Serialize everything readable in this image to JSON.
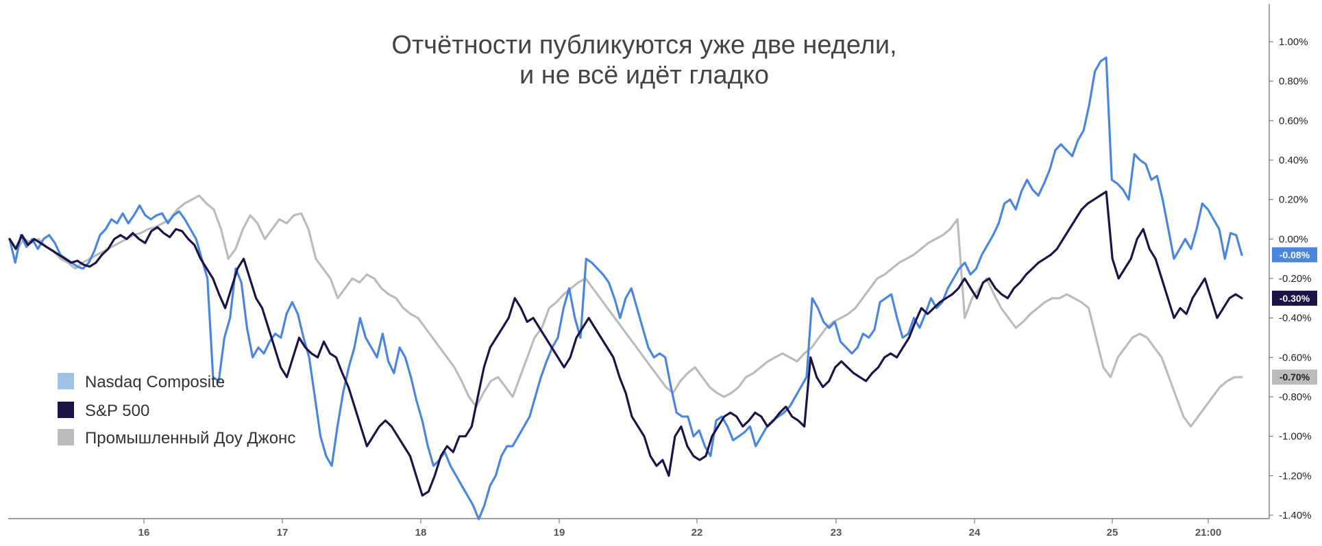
{
  "chart_data": {
    "type": "line",
    "title": [
      "Отчётности публикуются уже две недели,",
      "и не всё идёт гладко"
    ],
    "x_tick_labels": [
      "16",
      "17",
      "18",
      "19",
      "22",
      "23",
      "24",
      "25",
      "21:00"
    ],
    "y_axis": {
      "ylim": [
        -1.42,
        1.2
      ],
      "ticks": [
        1.0,
        0.8,
        0.6,
        0.4,
        0.2,
        0.0,
        -0.2,
        -0.4,
        -0.6,
        -0.8,
        -1.0,
        -1.2,
        -1.4
      ],
      "tick_labels": [
        "1.00%",
        "0.80%",
        "0.60%",
        "0.40%",
        "0.20%",
        "0.00%",
        "-0.20%",
        "-0.40%",
        "-0.60%",
        "-0.80%",
        "-1.00%",
        "-1.20%",
        "-1.40%"
      ],
      "position": "right"
    },
    "legend": {
      "placement": "bottom-left",
      "entries": [
        {
          "label": "Nasdaq Composite",
          "color": "#9dc3e9"
        },
        {
          "label": "S&P 500",
          "color": "#1c1347"
        },
        {
          "label": "Промышленный Доу Джонс",
          "color": "#bbbbbb"
        }
      ]
    },
    "series": [
      {
        "color": "#4a86de",
        "end_label": "-0.08%",
        "values": [
          0.0,
          -0.12,
          0.02,
          -0.04,
          0.0,
          -0.05,
          0.0,
          0.02,
          -0.02,
          -0.08,
          -0.1,
          -0.12,
          -0.14,
          -0.15,
          -0.12,
          -0.06,
          0.02,
          0.05,
          0.1,
          0.08,
          0.13,
          0.08,
          0.12,
          0.17,
          0.12,
          0.1,
          0.12,
          0.13,
          0.08,
          0.12,
          0.14,
          0.1,
          0.05,
          0.0,
          -0.1,
          -0.2,
          -0.7,
          -0.72,
          -0.5,
          -0.4,
          -0.15,
          -0.22,
          -0.45,
          -0.6,
          -0.55,
          -0.58,
          -0.52,
          -0.48,
          -0.5,
          -0.38,
          -0.32,
          -0.38,
          -0.5,
          -0.6,
          -0.8,
          -1.0,
          -1.1,
          -1.15,
          -0.95,
          -0.78,
          -0.65,
          -0.55,
          -0.4,
          -0.5,
          -0.55,
          -0.6,
          -0.48,
          -0.62,
          -0.68,
          -0.55,
          -0.6,
          -0.7,
          -0.82,
          -0.92,
          -1.05,
          -1.15,
          -1.12,
          -1.08,
          -1.15,
          -1.2,
          -1.25,
          -1.3,
          -1.35,
          -1.42,
          -1.35,
          -1.25,
          -1.2,
          -1.1,
          -1.05,
          -1.05,
          -1.0,
          -0.95,
          -0.9,
          -0.8,
          -0.7,
          -0.62,
          -0.55,
          -0.5,
          -0.35,
          -0.25,
          -0.4,
          -0.5,
          -0.1,
          -0.12,
          -0.15,
          -0.18,
          -0.22,
          -0.3,
          -0.4,
          -0.3,
          -0.25,
          -0.35,
          -0.45,
          -0.55,
          -0.6,
          -0.58,
          -0.6,
          -0.75,
          -0.88,
          -0.9,
          -0.9,
          -1.0,
          -0.97,
          -1.05,
          -1.1,
          -0.92,
          -0.9,
          -0.95,
          -1.02,
          -1.0,
          -0.98,
          -0.95,
          -1.05,
          -1.0,
          -0.95,
          -0.92,
          -0.9,
          -0.88,
          -0.85,
          -0.8,
          -0.75,
          -0.7,
          -0.3,
          -0.35,
          -0.42,
          -0.45,
          -0.42,
          -0.52,
          -0.55,
          -0.58,
          -0.55,
          -0.48,
          -0.5,
          -0.46,
          -0.32,
          -0.3,
          -0.28,
          -0.4,
          -0.5,
          -0.48,
          -0.4,
          -0.45,
          -0.38,
          -0.3,
          -0.35,
          -0.32,
          -0.25,
          -0.2,
          -0.15,
          -0.12,
          -0.18,
          -0.15,
          -0.08,
          -0.03,
          0.02,
          0.08,
          0.18,
          0.2,
          0.15,
          0.24,
          0.3,
          0.25,
          0.22,
          0.28,
          0.35,
          0.45,
          0.48,
          0.45,
          0.42,
          0.5,
          0.55,
          0.68,
          0.85,
          0.9,
          0.92,
          0.3,
          0.28,
          0.25,
          0.2,
          0.43,
          0.4,
          0.38,
          0.3,
          0.32,
          0.2,
          0.05,
          -0.1,
          -0.05,
          0.0,
          -0.05,
          0.05,
          0.18,
          0.15,
          0.1,
          0.05,
          -0.1,
          0.03,
          0.02,
          -0.08
        ]
      },
      {
        "color": "#1c1347",
        "end_label": "-0.30%",
        "values": [
          0.0,
          -0.05,
          0.02,
          -0.03,
          0.0,
          -0.02,
          -0.04,
          -0.06,
          -0.08,
          -0.1,
          -0.12,
          -0.11,
          -0.13,
          -0.14,
          -0.12,
          -0.08,
          -0.05,
          0.0,
          0.02,
          0.0,
          0.03,
          0.0,
          -0.02,
          0.04,
          0.06,
          0.03,
          0.01,
          0.05,
          0.04,
          0.0,
          -0.03,
          -0.1,
          -0.15,
          -0.2,
          -0.28,
          -0.35,
          -0.25,
          -0.15,
          -0.1,
          -0.2,
          -0.3,
          -0.35,
          -0.45,
          -0.55,
          -0.65,
          -0.7,
          -0.6,
          -0.5,
          -0.55,
          -0.58,
          -0.6,
          -0.52,
          -0.58,
          -0.6,
          -0.68,
          -0.75,
          -0.85,
          -0.95,
          -1.05,
          -1.0,
          -0.95,
          -0.92,
          -0.95,
          -1.0,
          -1.05,
          -1.1,
          -1.2,
          -1.3,
          -1.28,
          -1.2,
          -1.1,
          -1.05,
          -1.08,
          -1.0,
          -1.0,
          -0.95,
          -0.8,
          -0.65,
          -0.55,
          -0.5,
          -0.45,
          -0.4,
          -0.3,
          -0.35,
          -0.42,
          -0.4,
          -0.45,
          -0.5,
          -0.55,
          -0.6,
          -0.65,
          -0.6,
          -0.5,
          -0.45,
          -0.4,
          -0.45,
          -0.5,
          -0.55,
          -0.6,
          -0.7,
          -0.78,
          -0.9,
          -0.95,
          -1.0,
          -1.1,
          -1.15,
          -1.12,
          -1.2,
          -1.0,
          -0.95,
          -1.05,
          -1.1,
          -1.12,
          -1.1,
          -1.0,
          -0.95,
          -0.9,
          -0.88,
          -0.9,
          -0.95,
          -0.92,
          -0.88,
          -0.9,
          -0.95,
          -0.92,
          -0.88,
          -0.85,
          -0.9,
          -0.92,
          -0.95,
          -0.6,
          -0.7,
          -0.75,
          -0.72,
          -0.65,
          -0.62,
          -0.65,
          -0.68,
          -0.7,
          -0.72,
          -0.68,
          -0.65,
          -0.6,
          -0.58,
          -0.6,
          -0.55,
          -0.5,
          -0.42,
          -0.35,
          -0.38,
          -0.35,
          -0.32,
          -0.3,
          -0.28,
          -0.25,
          -0.2,
          -0.25,
          -0.3,
          -0.22,
          -0.2,
          -0.25,
          -0.28,
          -0.3,
          -0.25,
          -0.22,
          -0.18,
          -0.15,
          -0.12,
          -0.1,
          -0.08,
          -0.05,
          0.0,
          0.05,
          0.1,
          0.15,
          0.18,
          0.2,
          0.22,
          0.24,
          -0.1,
          -0.2,
          -0.15,
          -0.1,
          0.0,
          0.05,
          -0.05,
          -0.1,
          -0.2,
          -0.3,
          -0.4,
          -0.35,
          -0.38,
          -0.3,
          -0.25,
          -0.2,
          -0.3,
          -0.4,
          -0.35,
          -0.3,
          -0.28,
          -0.3
        ]
      },
      {
        "color": "#bbbbbb",
        "end_label": "-0.70%",
        "values": [
          0.0,
          -0.05,
          0.0,
          -0.02,
          0.0,
          -0.04,
          -0.06,
          -0.1,
          -0.12,
          -0.15,
          -0.12,
          -0.1,
          -0.08,
          -0.06,
          -0.04,
          -0.02,
          0.0,
          0.02,
          0.03,
          0.05,
          0.06,
          0.08,
          0.1,
          0.15,
          0.18,
          0.2,
          0.22,
          0.18,
          0.15,
          0.05,
          -0.1,
          -0.05,
          0.05,
          0.12,
          0.08,
          0.0,
          0.05,
          0.1,
          0.08,
          0.12,
          0.13,
          0.05,
          -0.1,
          -0.15,
          -0.2,
          -0.3,
          -0.25,
          -0.2,
          -0.22,
          -0.18,
          -0.2,
          -0.25,
          -0.28,
          -0.3,
          -0.35,
          -0.38,
          -0.4,
          -0.45,
          -0.5,
          -0.55,
          -0.6,
          -0.65,
          -0.72,
          -0.8,
          -0.85,
          -0.78,
          -0.72,
          -0.7,
          -0.75,
          -0.8,
          -0.7,
          -0.6,
          -0.5,
          -0.45,
          -0.35,
          -0.32,
          -0.28,
          -0.25,
          -0.22,
          -0.2,
          -0.25,
          -0.3,
          -0.35,
          -0.4,
          -0.45,
          -0.5,
          -0.55,
          -0.6,
          -0.65,
          -0.7,
          -0.75,
          -0.78,
          -0.72,
          -0.68,
          -0.65,
          -0.7,
          -0.75,
          -0.78,
          -0.8,
          -0.78,
          -0.75,
          -0.7,
          -0.68,
          -0.65,
          -0.62,
          -0.6,
          -0.58,
          -0.6,
          -0.62,
          -0.58,
          -0.55,
          -0.5,
          -0.45,
          -0.42,
          -0.4,
          -0.38,
          -0.35,
          -0.3,
          -0.25,
          -0.2,
          -0.18,
          -0.15,
          -0.12,
          -0.1,
          -0.08,
          -0.05,
          -0.02,
          0.0,
          0.02,
          0.05,
          0.1,
          -0.4,
          -0.3,
          -0.25,
          -0.2,
          -0.28,
          -0.35,
          -0.4,
          -0.45,
          -0.42,
          -0.38,
          -0.35,
          -0.32,
          -0.3,
          -0.3,
          -0.28,
          -0.3,
          -0.32,
          -0.35,
          -0.5,
          -0.65,
          -0.7,
          -0.6,
          -0.55,
          -0.5,
          -0.48,
          -0.5,
          -0.55,
          -0.6,
          -0.7,
          -0.8,
          -0.9,
          -0.95,
          -0.9,
          -0.85,
          -0.8,
          -0.75,
          -0.72,
          -0.7,
          -0.7
        ]
      }
    ]
  }
}
